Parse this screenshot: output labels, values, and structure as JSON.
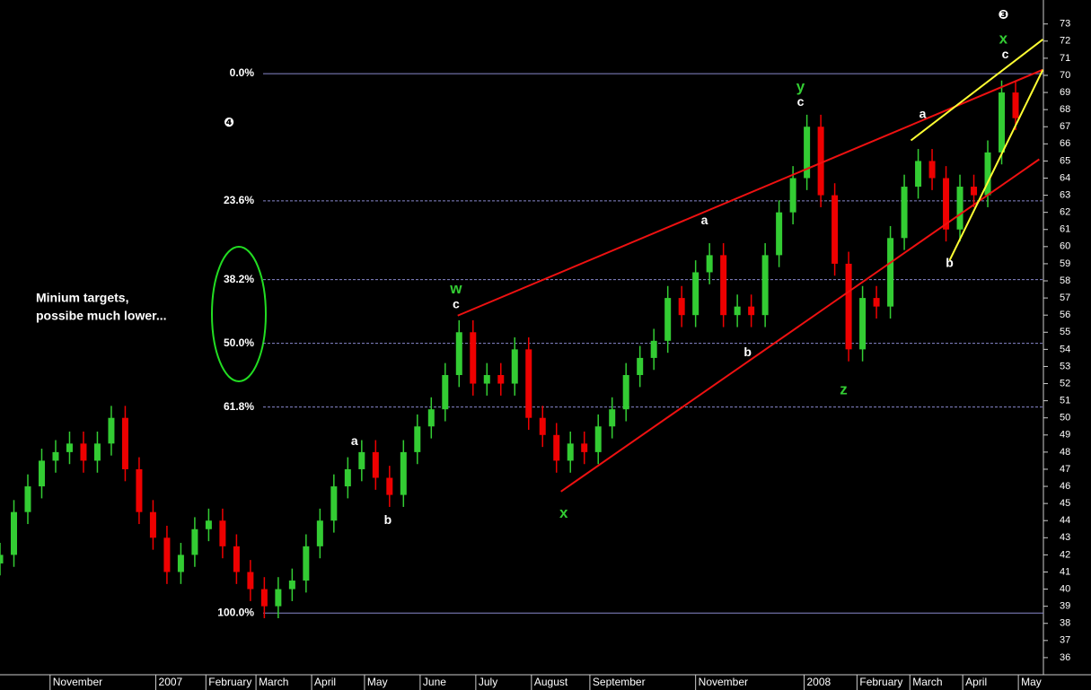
{
  "chart_data": {
    "type": "candlestick",
    "x": [
      0,
      5,
      10,
      15,
      20,
      25,
      30,
      35,
      40,
      45,
      50,
      55,
      60,
      65,
      70,
      75,
      80,
      85,
      90,
      95,
      100,
      105,
      110,
      115,
      120,
      125,
      130,
      135,
      140,
      145,
      150,
      155,
      160,
      165,
      170,
      175,
      180,
      185,
      190,
      195,
      200,
      205,
      210,
      215,
      220,
      225,
      230,
      235,
      240,
      245,
      250,
      255,
      260,
      265,
      270,
      275,
      280,
      285,
      290,
      295,
      300,
      305,
      310,
      315,
      320,
      325,
      330,
      335,
      340,
      345,
      350,
      355,
      360,
      365
    ],
    "open": [
      41.5,
      42,
      44.5,
      46,
      47.5,
      48,
      48.5,
      47.5,
      48.5,
      50,
      47,
      44.5,
      43,
      41,
      42,
      43.5,
      44,
      42.5,
      41,
      40,
      39,
      40,
      40.5,
      42.5,
      44,
      46,
      47,
      48,
      46.5,
      45.5,
      48,
      49.5,
      50.5,
      52.5,
      55,
      52,
      52.5,
      52,
      54,
      50,
      49,
      47.5,
      48.5,
      48,
      49.5,
      50.5,
      52.5,
      53.5,
      54.5,
      57,
      56,
      58.5,
      59.5,
      56,
      56.5,
      56,
      59.5,
      62,
      64,
      67,
      63,
      59,
      54,
      57,
      56.5,
      60.5,
      63.5,
      65,
      64,
      61,
      63.5,
      63,
      65.5,
      69
    ],
    "high": [
      42.7,
      45.2,
      46.7,
      48.2,
      48.7,
      49.2,
      49.2,
      49.2,
      50.7,
      50.7,
      47.7,
      45.2,
      43.7,
      42.7,
      44.2,
      44.7,
      44.7,
      43.2,
      41.7,
      40.7,
      40.7,
      41.2,
      43.2,
      44.7,
      46.7,
      47.7,
      48.7,
      48.7,
      47.2,
      48.7,
      50.2,
      51.2,
      53.2,
      55.7,
      55.7,
      53.2,
      53.2,
      54.7,
      54.7,
      50.7,
      49.7,
      49.2,
      49.2,
      50.2,
      51.2,
      53.2,
      54.2,
      55.2,
      57.7,
      57.7,
      59.2,
      60.2,
      60.2,
      57.2,
      57.2,
      60.2,
      62.7,
      64.7,
      67.7,
      67.7,
      63.7,
      59.7,
      57.7,
      57.7,
      61.2,
      64.2,
      65.7,
      65.7,
      64.7,
      64.2,
      64.2,
      66.2,
      69.7,
      69.7
    ],
    "low": [
      40.8,
      41.3,
      43.8,
      45.3,
      46.8,
      47.3,
      46.8,
      46.8,
      47.8,
      46.3,
      43.8,
      42.3,
      40.3,
      40.3,
      41.3,
      42.8,
      41.8,
      40.3,
      39.3,
      38.3,
      38.3,
      39.3,
      39.8,
      41.8,
      43.3,
      45.3,
      46.3,
      45.8,
      44.8,
      44.8,
      47.3,
      48.8,
      49.8,
      51.8,
      51.3,
      51.3,
      51.3,
      51.3,
      49.3,
      48.3,
      46.8,
      46.8,
      47.3,
      47.3,
      48.8,
      49.8,
      51.8,
      52.8,
      53.8,
      55.3,
      55.3,
      57.8,
      55.3,
      55.3,
      55.3,
      55.3,
      58.8,
      61.3,
      63.3,
      62.3,
      58.3,
      53.3,
      53.3,
      55.8,
      55.8,
      59.8,
      62.8,
      63.3,
      60.3,
      60.3,
      62.3,
      62.3,
      64.8,
      66.8
    ],
    "close": [
      42,
      44.5,
      46,
      47.5,
      48,
      48.5,
      47.5,
      48.5,
      50,
      47,
      44.5,
      43,
      41,
      42,
      43.5,
      44,
      42.5,
      41,
      40,
      39,
      40,
      40.5,
      42.5,
      44,
      46,
      47,
      48,
      46.5,
      45.5,
      48,
      49.5,
      50.5,
      52.5,
      55,
      52,
      52.5,
      52,
      54,
      50,
      49,
      47.5,
      48.5,
      48,
      49.5,
      50.5,
      52.5,
      53.5,
      54.5,
      57,
      56,
      58.5,
      59.5,
      56,
      56.5,
      56,
      59.5,
      62,
      64,
      67,
      63,
      59,
      54,
      57,
      56.5,
      60.5,
      63.5,
      65,
      64,
      61,
      63.5,
      63,
      65.5,
      69,
      67.5
    ],
    "up_color": "#33cc33",
    "down_color": "#ee0000",
    "xlim": [
      0,
      375
    ],
    "ylim": [
      35,
      74.4
    ],
    "xticks": [
      {
        "value": 18,
        "label": "November"
      },
      {
        "value": 56,
        "label": "2007"
      },
      {
        "value": 74,
        "label": "February"
      },
      {
        "value": 92,
        "label": "March"
      },
      {
        "value": 112,
        "label": "April"
      },
      {
        "value": 131,
        "label": "May"
      },
      {
        "value": 151,
        "label": "June"
      },
      {
        "value": 171,
        "label": "July"
      },
      {
        "value": 191,
        "label": "August"
      },
      {
        "value": 212,
        "label": "September"
      },
      {
        "value": 250,
        "label": "November"
      },
      {
        "value": 289,
        "label": "2008"
      },
      {
        "value": 308,
        "label": "February"
      },
      {
        "value": 327,
        "label": "March"
      },
      {
        "value": 346,
        "label": "April"
      },
      {
        "value": 366,
        "label": "May"
      }
    ],
    "yticks": [
      36,
      37,
      38,
      39,
      40,
      41,
      42,
      43,
      44,
      45,
      46,
      47,
      48,
      49,
      50,
      51,
      52,
      53,
      54,
      55,
      56,
      57,
      58,
      59,
      60,
      61,
      62,
      63,
      64,
      65,
      66,
      67,
      68,
      69,
      70,
      71,
      72,
      73
    ],
    "fib_levels": [
      {
        "value": 70.1,
        "label": "0.0%"
      },
      {
        "value": 62.67,
        "label": "23.6%"
      },
      {
        "value": 58.07,
        "label": "38.2%"
      },
      {
        "value": 54.35,
        "label": "50.0%"
      },
      {
        "value": 50.63,
        "label": "61.8%"
      },
      {
        "value": 38.6,
        "label": "100.0%"
      }
    ],
    "trendlines": [
      {
        "color": "#ee1111",
        "x": [
          164.5,
          374.8
        ],
        "y": [
          55.97,
          70.33
        ]
      },
      {
        "color": "#ee1111",
        "x": [
          201.6,
          373.5
        ],
        "y": [
          45.7,
          65.1
        ]
      },
      {
        "color": "#ffff33",
        "x": [
          327.4,
          374.8
        ],
        "y": [
          66.2,
          72.1
        ]
      },
      {
        "color": "#ffff33",
        "x": [
          341.3,
          374.8
        ],
        "y": [
          59.2,
          70.33
        ]
      }
    ],
    "wave_labels": [
      {
        "text": "w",
        "x": 163.9,
        "y": 57.5,
        "color": "#33cc33"
      },
      {
        "text": "c",
        "x": 163.9,
        "y": 56.6,
        "color": "#ffffff"
      },
      {
        "text": "a",
        "x": 127.4,
        "y": 48.6,
        "color": "#ffffff"
      },
      {
        "text": "b",
        "x": 139.4,
        "y": 44.0,
        "color": "#ffffff"
      },
      {
        "text": "x",
        "x": 202.6,
        "y": 44.4,
        "color": "#33cc33"
      },
      {
        "text": "a",
        "x": 253.2,
        "y": 61.5,
        "color": "#ffffff"
      },
      {
        "text": "b",
        "x": 268.7,
        "y": 53.8,
        "color": "#ffffff"
      },
      {
        "text": "y",
        "x": 287.7,
        "y": 69.3,
        "color": "#33cc33"
      },
      {
        "text": "c",
        "x": 287.7,
        "y": 68.4,
        "color": "#ffffff"
      },
      {
        "text": "z",
        "x": 303.2,
        "y": 51.6,
        "color": "#33cc33"
      },
      {
        "text": "a",
        "x": 331.6,
        "y": 67.7,
        "color": "#ffffff"
      },
      {
        "text": "b",
        "x": 341.3,
        "y": 59.0,
        "color": "#ffffff"
      },
      {
        "text": "x",
        "x": 360.6,
        "y": 72.1,
        "color": "#33cc33"
      },
      {
        "text": "c",
        "x": 361.3,
        "y": 71.2,
        "color": "#ffffff"
      },
      {
        "text": "❸",
        "x": 360.6,
        "y": 73.5,
        "color": "#ffffff"
      },
      {
        "text": "❹",
        "x": 82.3,
        "y": 67.2,
        "color": "#ffffff"
      }
    ],
    "annotation": [
      "Minium targets,",
      "possibe much lower..."
    ]
  }
}
